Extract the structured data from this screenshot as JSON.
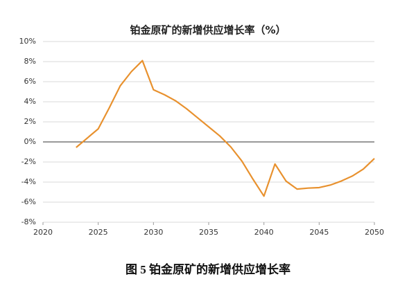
{
  "chart_data": {
    "type": "line",
    "title": "铂金原矿的新增供应增长率（%）",
    "caption": "图 5 铂金原矿的新增供应增长率",
    "x": [
      2023,
      2025,
      2026,
      2027,
      2028,
      2029,
      2030,
      2031,
      2032,
      2033,
      2034,
      2035,
      2036,
      2037,
      2038,
      2039,
      2040,
      2041,
      2042,
      2043,
      2044,
      2045,
      2046,
      2047,
      2048,
      2049,
      2050
    ],
    "series": [
      {
        "name": "新增供应增长率",
        "color": "#e8912e",
        "values": [
          -0.55,
          1.3,
          3.4,
          5.6,
          7.0,
          8.1,
          5.2,
          4.7,
          4.1,
          3.3,
          2.4,
          1.5,
          0.6,
          -0.5,
          -1.9,
          -3.7,
          -5.4,
          -2.2,
          -3.9,
          -4.7,
          -4.6,
          -4.55,
          -4.3,
          -3.9,
          -3.4,
          -2.7,
          -1.65
        ]
      }
    ],
    "xlim": [
      2020,
      2050
    ],
    "xticks": [
      2020,
      2025,
      2030,
      2035,
      2040,
      2045,
      2050
    ],
    "ylim": [
      -8,
      10
    ],
    "yticks": [
      {
        "value": -8,
        "label": "-8%"
      },
      {
        "value": -6,
        "label": "-6%"
      },
      {
        "value": -4,
        "label": "-4%"
      },
      {
        "value": -2,
        "label": "-2%"
      },
      {
        "value": 0,
        "label": "0%"
      },
      {
        "value": 2,
        "label": "2%"
      },
      {
        "value": 4,
        "label": "4%"
      },
      {
        "value": 6,
        "label": "6%"
      },
      {
        "value": 8,
        "label": "8%"
      },
      {
        "value": 10,
        "label": "10%"
      }
    ],
    "grid": true
  }
}
